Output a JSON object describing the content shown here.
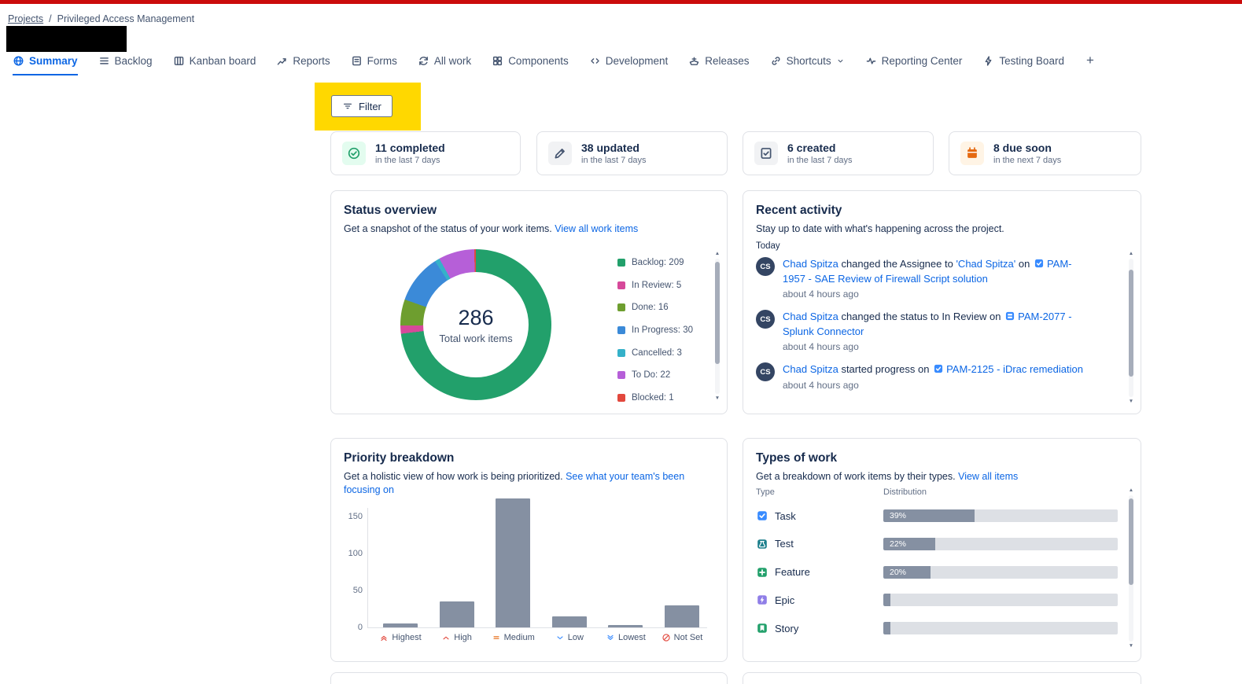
{
  "colors": {
    "top_bar": "#cb0b0b",
    "link_blue": "#0c66e4",
    "active_tab": "#0c66e4",
    "filter_highlight": "#ffd800",
    "bar_gray": "#8590a2"
  },
  "breadcrumb": {
    "projects_label": "Projects",
    "separator": "/",
    "current_label": "Privileged Access Management"
  },
  "tabs": {
    "items": [
      {
        "label": "Summary",
        "icon": "globe",
        "active": true
      },
      {
        "label": "Backlog",
        "icon": "backlog",
        "active": false
      },
      {
        "label": "Kanban board",
        "icon": "board",
        "active": false
      },
      {
        "label": "Reports",
        "icon": "reports",
        "active": false
      },
      {
        "label": "Forms",
        "icon": "forms",
        "active": false
      },
      {
        "label": "All work",
        "icon": "allwork",
        "active": false
      },
      {
        "label": "Components",
        "icon": "components",
        "active": false
      },
      {
        "label": "Development",
        "icon": "code",
        "active": false
      },
      {
        "label": "Releases",
        "icon": "ship",
        "active": false
      },
      {
        "label": "Shortcuts",
        "icon": "link",
        "active": false,
        "has_chevron": true
      },
      {
        "label": "Reporting Center",
        "icon": "pulse",
        "active": false
      },
      {
        "label": "Testing Board",
        "icon": "bolt",
        "active": false
      }
    ],
    "add_button": "+"
  },
  "filter_button": {
    "label": "Filter"
  },
  "stat_cards": [
    {
      "title": "11 completed",
      "subtitle": "in the last 7 days",
      "icon": "check-circle",
      "icon_color": "#22a06b",
      "icon_bg": "#e3fcef"
    },
    {
      "title": "38 updated",
      "subtitle": "in the last 7 days",
      "icon": "pencil",
      "icon_color": "#44546f",
      "icon_bg": "#f1f2f4"
    },
    {
      "title": "6 created",
      "subtitle": "in the last 7 days",
      "icon": "doc-check",
      "icon_color": "#44546f",
      "icon_bg": "#f1f2f4"
    },
    {
      "title": "8 due soon",
      "subtitle": "in the next 7 days",
      "icon": "calendar",
      "icon_color": "#e56910",
      "icon_bg": "#fff4e5"
    }
  ],
  "status_overview": {
    "title": "Status overview",
    "subtitle": "Get a snapshot of the status of your work items.",
    "link_label": "View all work items",
    "total_value": "286",
    "total_label": "Total work items"
  },
  "recent_activity": {
    "title": "Recent activity",
    "subtitle": "Stay up to date with what's happening across the project.",
    "group_label": "Today",
    "items": [
      {
        "avatar": "CS",
        "time": "about 4 hours ago",
        "parts": [
          {
            "type": "link",
            "text": "Chad Spitza"
          },
          {
            "type": "text",
            "text": " changed the Assignee to "
          },
          {
            "type": "link",
            "text": "'Chad Spitza'"
          },
          {
            "type": "text",
            "text": " on "
          },
          {
            "type": "icon",
            "icon": "task",
            "color": "#388bff"
          },
          {
            "type": "link",
            "text": "PAM-1957 - SAE Review of Firewall Script solution"
          }
        ]
      },
      {
        "avatar": "CS",
        "time": "about 4 hours ago",
        "parts": [
          {
            "type": "link",
            "text": "Chad Spitza"
          },
          {
            "type": "text",
            "text": " changed the status to In Review on "
          },
          {
            "type": "icon",
            "icon": "subtask",
            "color": "#388bff"
          },
          {
            "type": "link",
            "text": "PAM-2077 - Splunk Connector"
          }
        ]
      },
      {
        "avatar": "CS",
        "time": "about 4 hours ago",
        "parts": [
          {
            "type": "link",
            "text": "Chad Spitza"
          },
          {
            "type": "text",
            "text": " started progress on "
          },
          {
            "type": "icon",
            "icon": "task",
            "color": "#388bff"
          },
          {
            "type": "link",
            "text": "PAM-2125 - iDrac remediation"
          }
        ]
      }
    ]
  },
  "priority_breakdown": {
    "title": "Priority breakdown",
    "subtitle": "Get a holistic view of how work is being prioritized.",
    "link_label": "See what your team's been focusing on"
  },
  "types_of_work": {
    "title": "Types of work",
    "subtitle": "Get a breakdown of work items by their types.",
    "link_label": "View all items",
    "columns": {
      "type": "Type",
      "distribution": "Distribution"
    },
    "rows": [
      {
        "label": "Task",
        "icon": "task",
        "icon_color": "#388bff",
        "percent": 39,
        "percent_label": "39%"
      },
      {
        "label": "Test",
        "icon": "test",
        "icon_color": "#1d7f8c",
        "percent": 22,
        "percent_label": "22%"
      },
      {
        "label": "Feature",
        "icon": "feature",
        "icon_color": "#22a06b",
        "percent": 20,
        "percent_label": "20%"
      },
      {
        "label": "Epic",
        "icon": "epic",
        "icon_color": "#8f7ee7",
        "percent": 3,
        "percent_label": ""
      },
      {
        "label": "Story",
        "icon": "story",
        "icon_color": "#22a06b",
        "percent": 3,
        "percent_label": ""
      }
    ]
  },
  "chart_data": [
    {
      "type": "pie",
      "title": "Status overview",
      "center_value": 286,
      "center_label": "Total work items",
      "legend_position": "right",
      "segments": [
        {
          "label": "Backlog",
          "value": 209,
          "color": "#22a06b"
        },
        {
          "label": "In Review",
          "value": 5,
          "color": "#d6499a"
        },
        {
          "label": "Done",
          "value": 16,
          "color": "#6e9e2f"
        },
        {
          "label": "In Progress",
          "value": 30,
          "color": "#3b8ad8"
        },
        {
          "label": "Cancelled",
          "value": 3,
          "color": "#35b1c9"
        },
        {
          "label": "To Do",
          "value": 22,
          "color": "#b65fd8"
        },
        {
          "label": "Blocked",
          "value": 1,
          "color": "#e2483d"
        }
      ]
    },
    {
      "type": "bar",
      "title": "Priority breakdown",
      "categories": [
        "Highest",
        "High",
        "Medium",
        "Low",
        "Lowest",
        "Not Set"
      ],
      "values": [
        5,
        35,
        175,
        15,
        3,
        30
      ],
      "bar_color": "#8590a2",
      "yticks": [
        0,
        50,
        100,
        150
      ],
      "ylim": [
        0,
        185
      ],
      "grid": false,
      "category_icons": [
        {
          "icon": "p-highest",
          "color": "#e2483d"
        },
        {
          "icon": "p-high",
          "color": "#e2483d"
        },
        {
          "icon": "p-medium",
          "color": "#e56910"
        },
        {
          "icon": "p-low",
          "color": "#388bff"
        },
        {
          "icon": "p-lowest",
          "color": "#388bff"
        },
        {
          "icon": "p-notset",
          "color": "#e2483d"
        }
      ]
    }
  ]
}
